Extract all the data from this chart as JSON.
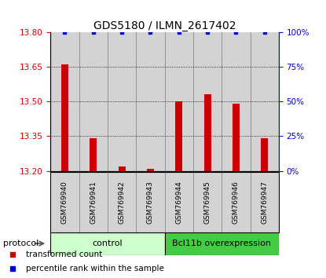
{
  "title": "GDS5180 / ILMN_2617402",
  "samples": [
    "GSM769940",
    "GSM769941",
    "GSM769942",
    "GSM769943",
    "GSM769944",
    "GSM769945",
    "GSM769946",
    "GSM769947"
  ],
  "red_values": [
    13.66,
    13.34,
    13.22,
    13.21,
    13.5,
    13.53,
    13.49,
    13.34
  ],
  "blue_values": [
    100,
    100,
    100,
    100,
    100,
    100,
    100,
    100
  ],
  "ylim_left": [
    13.2,
    13.8
  ],
  "ylim_right": [
    0,
    100
  ],
  "yticks_left": [
    13.2,
    13.35,
    13.5,
    13.65,
    13.8
  ],
  "yticks_right": [
    0,
    25,
    50,
    75,
    100
  ],
  "groups": [
    {
      "label": "control",
      "indices": [
        0,
        1,
        2,
        3
      ],
      "color": "#ccffcc"
    },
    {
      "label": "Bcl11b overexpression",
      "indices": [
        4,
        5,
        6,
        7
      ],
      "color": "#44cc44"
    }
  ],
  "protocol_label": "protocol",
  "bar_color": "#cc0000",
  "blue_color": "#0000cc",
  "bar_bottom": 13.2,
  "col_bg_color": "#d3d3d3",
  "col_border_color": "#888888",
  "legend_items": [
    {
      "label": "transformed count",
      "color": "#cc0000"
    },
    {
      "label": "percentile rank within the sample",
      "color": "#0000cc"
    }
  ]
}
